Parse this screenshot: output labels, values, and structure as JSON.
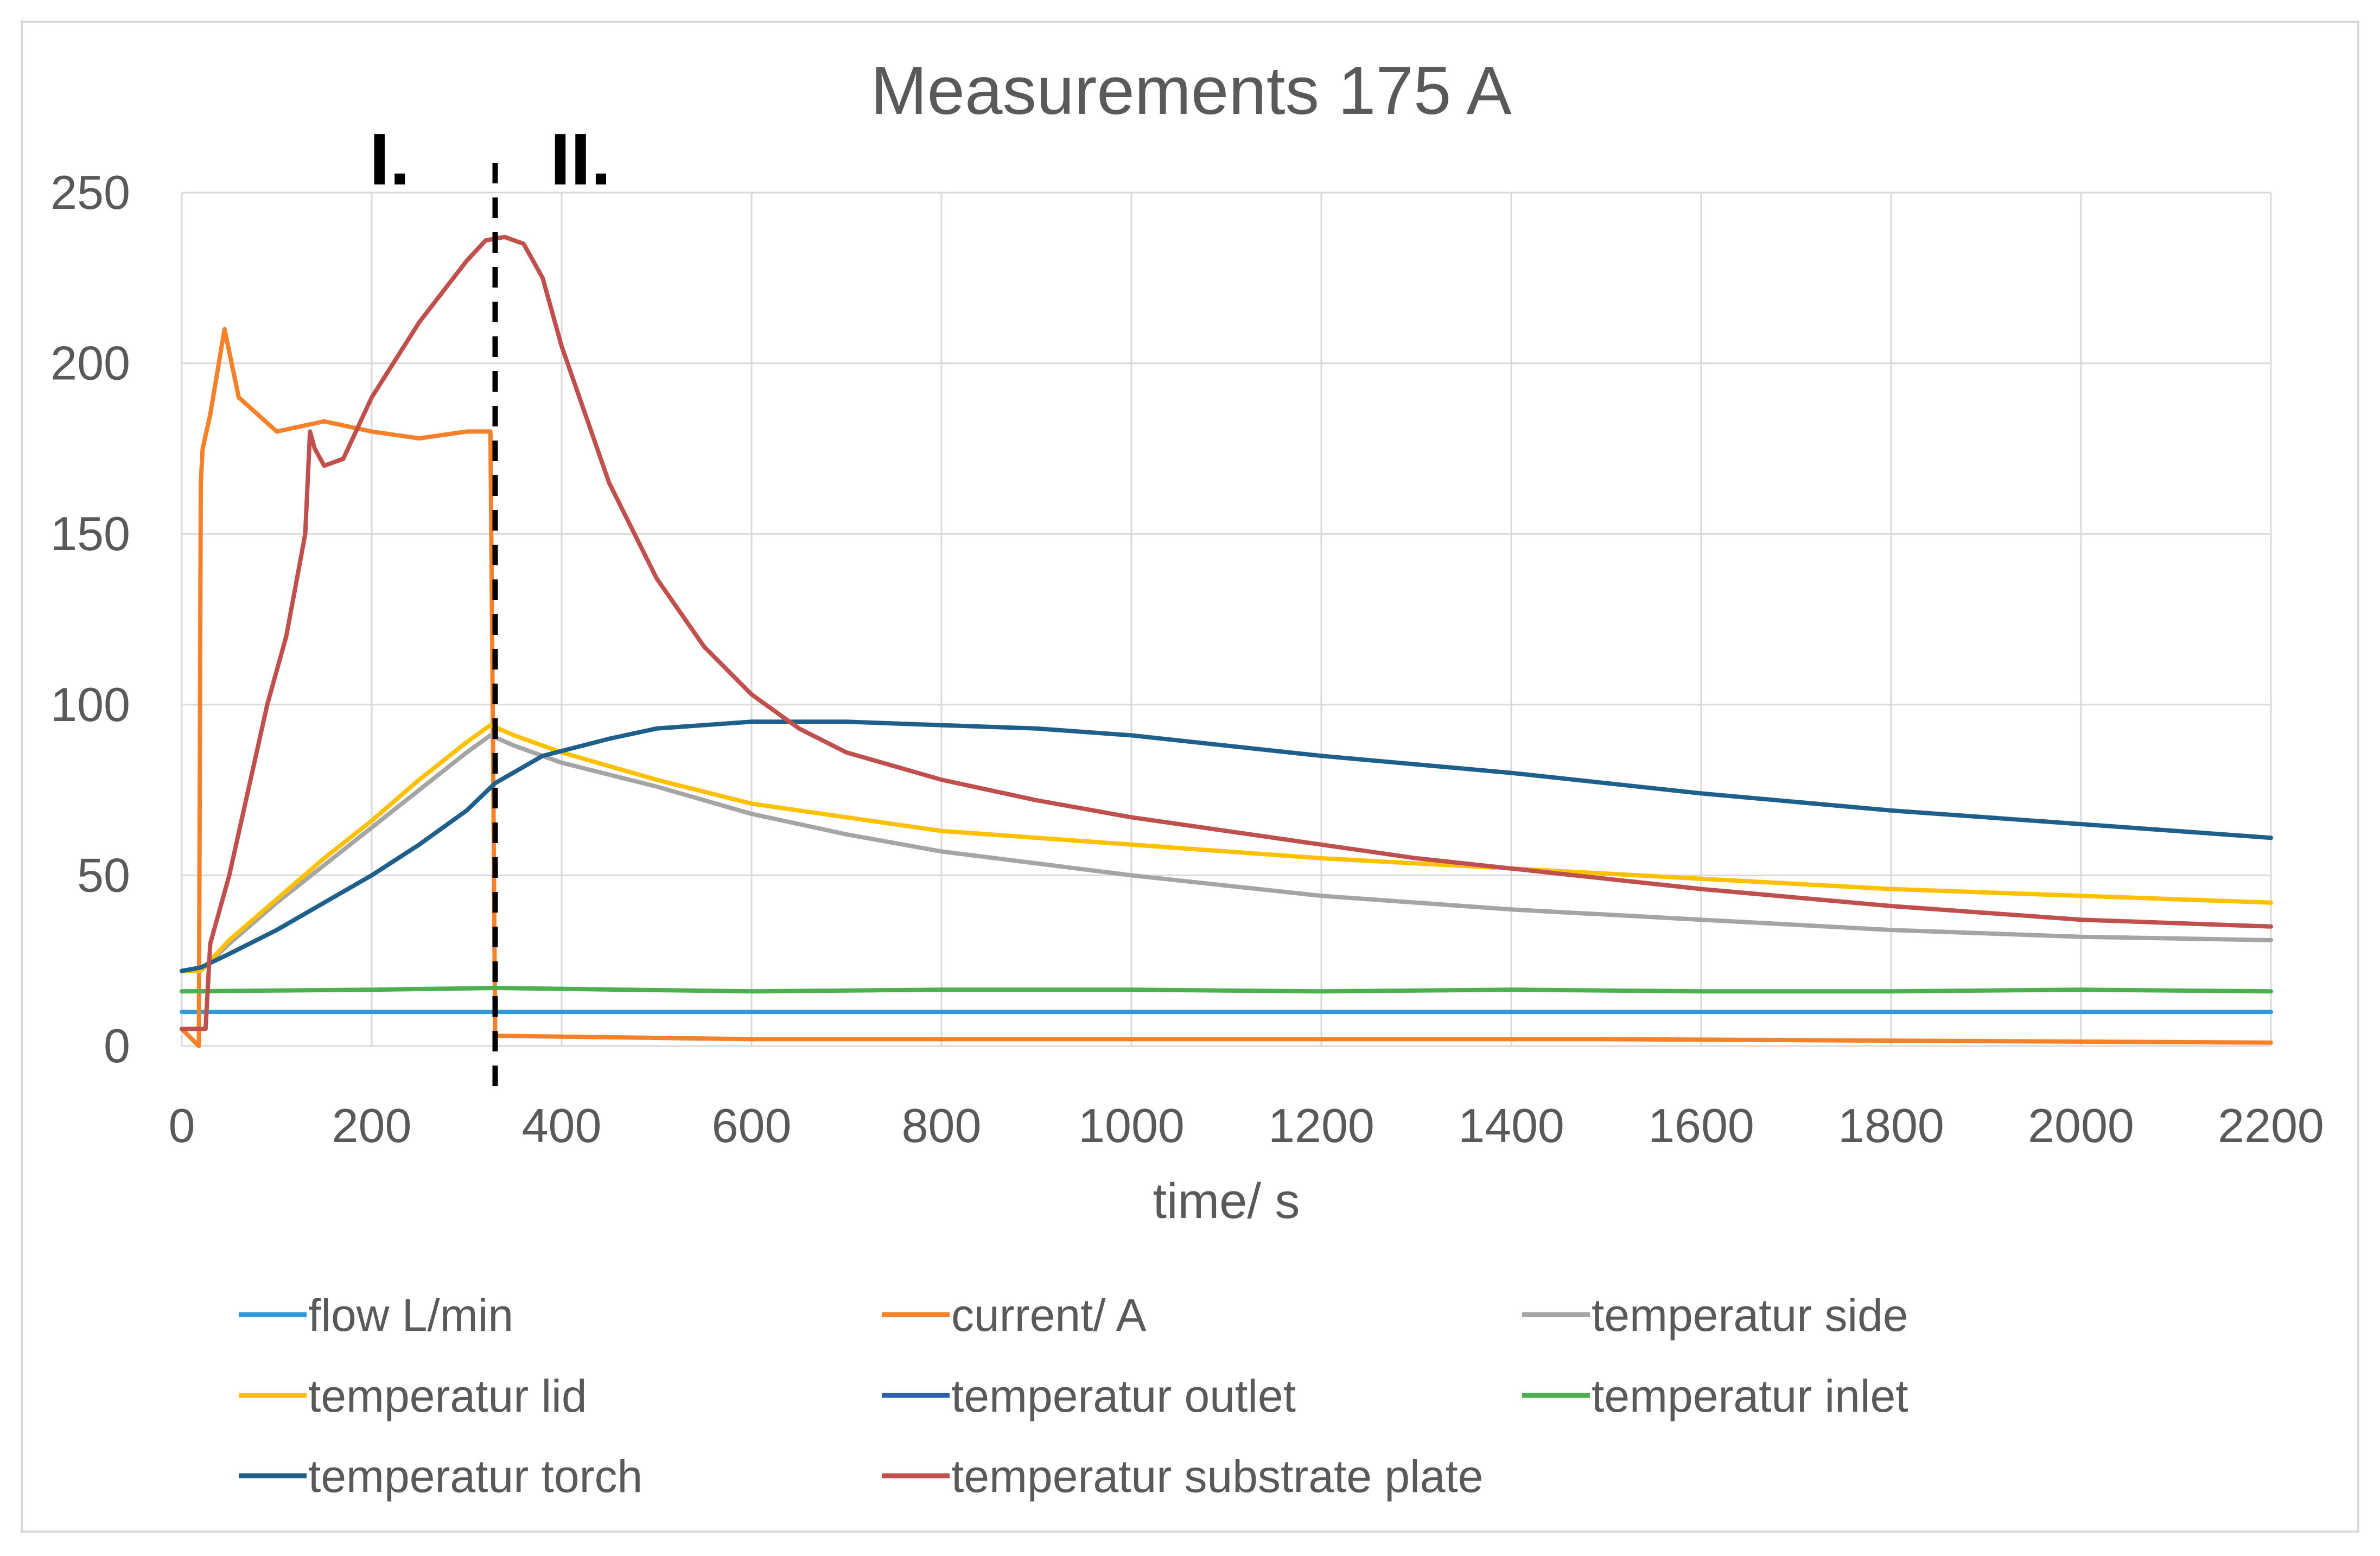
{
  "chart_data": {
    "type": "line",
    "title": "Measurements 175 A",
    "xlabel": "time/ s",
    "ylabel": "",
    "xlim": [
      0,
      2200
    ],
    "ylim": [
      0,
      250
    ],
    "xticks": [
      0,
      200,
      400,
      600,
      800,
      1000,
      1200,
      1400,
      1600,
      1800,
      2000,
      2200
    ],
    "yticks": [
      0,
      50,
      100,
      150,
      200,
      250
    ],
    "grid": true,
    "legend_position": "bottom",
    "phase_divider": {
      "x": 330,
      "labels": [
        "I.",
        "II."
      ]
    },
    "series": [
      {
        "name": "flow L/min",
        "color": "#2E9BD6",
        "noise": 0,
        "points": [
          [
            0,
            10
          ],
          [
            2200,
            10
          ]
        ]
      },
      {
        "name": "current/ A",
        "color": "#F5812A",
        "noise": 0,
        "points": [
          [
            0,
            5
          ],
          [
            18,
            0
          ],
          [
            20,
            165
          ],
          [
            22,
            175
          ],
          [
            30,
            185
          ],
          [
            45,
            210
          ],
          [
            60,
            190
          ],
          [
            100,
            180
          ],
          [
            150,
            183
          ],
          [
            200,
            180
          ],
          [
            250,
            178
          ],
          [
            300,
            180
          ],
          [
            325,
            180
          ],
          [
            328,
            80
          ],
          [
            330,
            3
          ],
          [
            600,
            2
          ],
          [
            1000,
            2
          ],
          [
            1500,
            2
          ],
          [
            2200,
            1
          ]
        ]
      },
      {
        "name": "temperatur side",
        "color": "#A5A5A5",
        "noise": 0,
        "points": [
          [
            0,
            22
          ],
          [
            20,
            22
          ],
          [
            50,
            30
          ],
          [
            100,
            42
          ],
          [
            150,
            53
          ],
          [
            200,
            64
          ],
          [
            250,
            75
          ],
          [
            300,
            86
          ],
          [
            325,
            91
          ],
          [
            350,
            88
          ],
          [
            400,
            83
          ],
          [
            500,
            76
          ],
          [
            600,
            68
          ],
          [
            700,
            62
          ],
          [
            800,
            57
          ],
          [
            1000,
            50
          ],
          [
            1200,
            44
          ],
          [
            1400,
            40
          ],
          [
            1600,
            37
          ],
          [
            1800,
            34
          ],
          [
            2000,
            32
          ],
          [
            2200,
            31
          ]
        ]
      },
      {
        "name": "temperatur lid",
        "color": "#FFC000",
        "noise": 0,
        "points": [
          [
            0,
            22
          ],
          [
            20,
            22
          ],
          [
            50,
            31
          ],
          [
            100,
            43
          ],
          [
            150,
            55
          ],
          [
            200,
            66
          ],
          [
            250,
            78
          ],
          [
            300,
            89
          ],
          [
            325,
            94
          ],
          [
            350,
            91
          ],
          [
            400,
            86
          ],
          [
            500,
            78
          ],
          [
            600,
            71
          ],
          [
            700,
            67
          ],
          [
            800,
            63
          ],
          [
            1000,
            59
          ],
          [
            1200,
            55
          ],
          [
            1400,
            52
          ],
          [
            1600,
            49
          ],
          [
            1800,
            46
          ],
          [
            2000,
            44
          ],
          [
            2200,
            42
          ]
        ]
      },
      {
        "name": "temperatur outlet",
        "color": "#2E5FA8",
        "noise": 0,
        "points": []
      },
      {
        "name": "temperatur inlet",
        "color": "#4CAF50",
        "noise": 0,
        "points": [
          [
            0,
            16
          ],
          [
            200,
            16.5
          ],
          [
            330,
            17
          ],
          [
            600,
            16
          ],
          [
            800,
            16.5
          ],
          [
            1000,
            16.5
          ],
          [
            1200,
            16
          ],
          [
            1400,
            16.5
          ],
          [
            1600,
            16
          ],
          [
            1800,
            16
          ],
          [
            2000,
            16.5
          ],
          [
            2200,
            16
          ]
        ]
      },
      {
        "name": "temperatur torch",
        "color": "#1F5F8B",
        "noise": 0,
        "points": [
          [
            0,
            22
          ],
          [
            20,
            23
          ],
          [
            50,
            27
          ],
          [
            100,
            34
          ],
          [
            150,
            42
          ],
          [
            200,
            50
          ],
          [
            250,
            59
          ],
          [
            300,
            69
          ],
          [
            330,
            77
          ],
          [
            380,
            85
          ],
          [
            450,
            90
          ],
          [
            500,
            93
          ],
          [
            600,
            95
          ],
          [
            700,
            95
          ],
          [
            800,
            94
          ],
          [
            900,
            93
          ],
          [
            1000,
            91
          ],
          [
            1200,
            85
          ],
          [
            1400,
            80
          ],
          [
            1600,
            74
          ],
          [
            1800,
            69
          ],
          [
            2000,
            65
          ],
          [
            2200,
            61
          ]
        ]
      },
      {
        "name": "temperatur substrate plate",
        "color": "#C0504D",
        "noise": 0,
        "points": [
          [
            0,
            5
          ],
          [
            25,
            5
          ],
          [
            30,
            30
          ],
          [
            50,
            50
          ],
          [
            70,
            75
          ],
          [
            90,
            100
          ],
          [
            110,
            120
          ],
          [
            130,
            150
          ],
          [
            135,
            180
          ],
          [
            140,
            175
          ],
          [
            150,
            170
          ],
          [
            170,
            172
          ],
          [
            200,
            190
          ],
          [
            250,
            212
          ],
          [
            300,
            230
          ],
          [
            320,
            236
          ],
          [
            340,
            237
          ],
          [
            360,
            235
          ],
          [
            380,
            225
          ],
          [
            400,
            205
          ],
          [
            450,
            165
          ],
          [
            500,
            137
          ],
          [
            550,
            117
          ],
          [
            600,
            103
          ],
          [
            650,
            93
          ],
          [
            700,
            86
          ],
          [
            800,
            78
          ],
          [
            900,
            72
          ],
          [
            1000,
            67
          ],
          [
            1100,
            63
          ],
          [
            1200,
            59
          ],
          [
            1300,
            55
          ],
          [
            1400,
            52
          ],
          [
            1500,
            49
          ],
          [
            1600,
            46
          ],
          [
            1800,
            41
          ],
          [
            2000,
            37
          ],
          [
            2200,
            35
          ]
        ]
      }
    ]
  }
}
